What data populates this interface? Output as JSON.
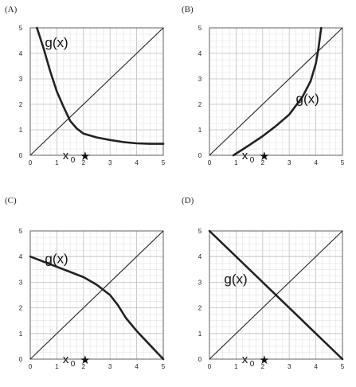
{
  "chart_data": [
    {
      "panel_label": "(A)",
      "type": "line",
      "xlim": [
        0,
        5
      ],
      "ylim": [
        0,
        5
      ],
      "x_ticks": [
        "0",
        "1",
        "2",
        "3",
        "4",
        "5"
      ],
      "y_ticks": [
        "0",
        "1",
        "2",
        "3",
        "4",
        "5"
      ],
      "grid": true,
      "series": [
        {
          "name": "g(x)",
          "points": [
            [
              0.25,
              5
            ],
            [
              0.5,
              4.2
            ],
            [
              0.75,
              3.3
            ],
            [
              1,
              2.5
            ],
            [
              1.25,
              1.9
            ],
            [
              1.5,
              1.35
            ],
            [
              1.75,
              1.05
            ],
            [
              2,
              0.85
            ],
            [
              2.5,
              0.7
            ],
            [
              3,
              0.6
            ],
            [
              3.5,
              0.52
            ],
            [
              4,
              0.47
            ],
            [
              4.5,
              0.45
            ],
            [
              5,
              0.45
            ]
          ]
        },
        {
          "points": [
            [
              0,
              0
            ],
            [
              5,
              5
            ]
          ]
        }
      ],
      "annotations": [
        {
          "text": "x",
          "subscript": "0",
          "marker": "★",
          "x": 2
        }
      ],
      "glabel_text": "g(x)"
    },
    {
      "panel_label": "(B)",
      "type": "line",
      "xlim": [
        0,
        5
      ],
      "ylim": [
        0,
        5
      ],
      "x_ticks": [
        "0",
        "1",
        "2",
        "3",
        "4",
        "5"
      ],
      "y_ticks": [
        "0",
        "1",
        "2",
        "3",
        "4",
        "5"
      ],
      "grid": true,
      "series": [
        {
          "name": "g(x)",
          "points": [
            [
              0.9,
              0
            ],
            [
              1.2,
              0.2
            ],
            [
              1.5,
              0.4
            ],
            [
              2,
              0.75
            ],
            [
              2.5,
              1.15
            ],
            [
              3,
              1.6
            ],
            [
              3.5,
              2.3
            ],
            [
              3.8,
              2.9
            ],
            [
              4,
              3.6
            ],
            [
              4.1,
              4.2
            ],
            [
              4.2,
              5
            ]
          ]
        },
        {
          "points": [
            [
              0,
              0
            ],
            [
              5,
              5
            ]
          ]
        }
      ],
      "annotations": [
        {
          "text": "x",
          "subscript": "0",
          "marker": "★",
          "x": 2
        }
      ],
      "glabel_text": "g(x)"
    },
    {
      "panel_label": "(C)",
      "type": "line",
      "xlim": [
        0,
        5
      ],
      "ylim": [
        0,
        5
      ],
      "x_ticks": [
        "0",
        "1",
        "2",
        "3",
        "4",
        "5"
      ],
      "y_ticks": [
        "0",
        "1",
        "2",
        "3",
        "4",
        "5"
      ],
      "grid": true,
      "series": [
        {
          "name": "g(x)",
          "points": [
            [
              0,
              4
            ],
            [
              0.5,
              3.8
            ],
            [
              1,
              3.6
            ],
            [
              1.5,
              3.4
            ],
            [
              2,
              3.2
            ],
            [
              2.5,
              2.9
            ],
            [
              3,
              2.5
            ],
            [
              3.3,
              2.1
            ],
            [
              3.6,
              1.6
            ],
            [
              4,
              1.1
            ],
            [
              4.5,
              0.55
            ],
            [
              5,
              0
            ]
          ]
        },
        {
          "points": [
            [
              0,
              0
            ],
            [
              5,
              5
            ]
          ]
        }
      ],
      "annotations": [
        {
          "text": "x",
          "subscript": "0",
          "marker": "★",
          "x": 2
        }
      ],
      "glabel_text": "g(x)"
    },
    {
      "panel_label": "(D)",
      "type": "line",
      "xlim": [
        0,
        5
      ],
      "ylim": [
        0,
        5
      ],
      "x_ticks": [
        "0",
        "1",
        "2",
        "3",
        "4",
        "5"
      ],
      "y_ticks": [
        "0",
        "1",
        "2",
        "3",
        "4",
        "5"
      ],
      "grid": true,
      "series": [
        {
          "name": "g(x)",
          "points": [
            [
              0,
              5
            ],
            [
              5,
              0
            ]
          ]
        },
        {
          "points": [
            [
              0,
              0
            ],
            [
              5,
              5
            ]
          ]
        }
      ],
      "annotations": [
        {
          "text": "x",
          "subscript": "0",
          "marker": "★",
          "x": 2
        }
      ],
      "glabel_text": "g(x)"
    }
  ]
}
